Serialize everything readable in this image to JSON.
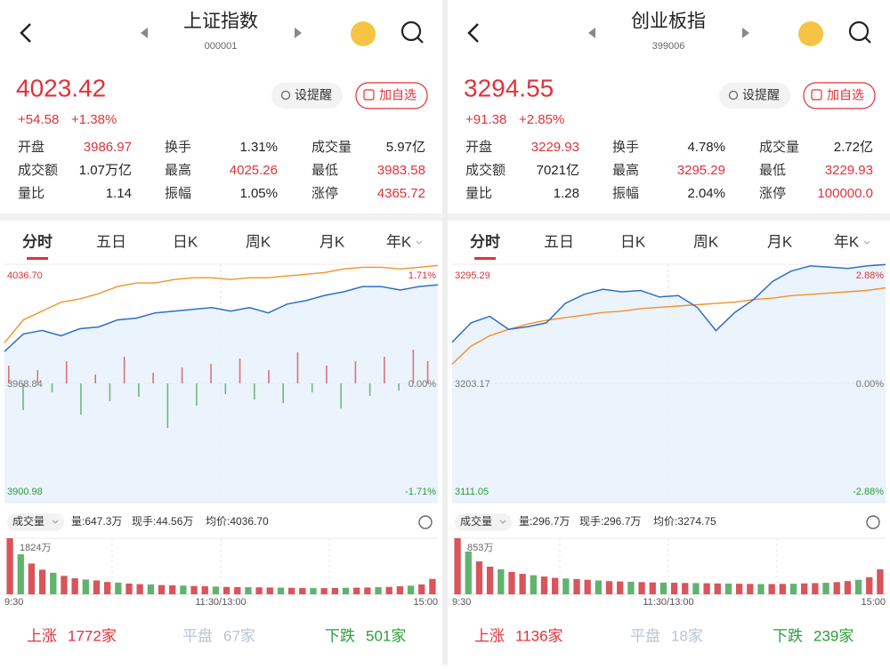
{
  "panels": [
    {
      "header": {
        "title": "上证指数",
        "code": "000001"
      },
      "quote": {
        "price": "4023.42",
        "change": "+54.58",
        "pct": "+1.38%"
      },
      "buttons": [
        "设提醒",
        "加自选"
      ],
      "stats": [
        [
          "开盘",
          "3986.97"
        ],
        [
          "换手",
          "1.31%"
        ],
        [
          "成交量",
          "5.97亿"
        ],
        [
          "成交额",
          "1.07万亿"
        ],
        [
          "最高",
          "4025.26"
        ],
        [
          "最低",
          "3983.58"
        ],
        [
          "量比",
          "1.14"
        ],
        [
          "振幅",
          "1.05%"
        ],
        [
          "涨停",
          "4365.72"
        ]
      ],
      "tabs": [
        "分时",
        "五日",
        "日K",
        "周K",
        "月K",
        "年K"
      ],
      "chart": {
        "ymax_label": "4036.70",
        "ymid_label": "3968.84",
        "ymin_label": "3900.98",
        "pct_max": "1.71%",
        "pct_mid": "0.00%",
        "pct_min": "-1.71%",
        "ylim": [
          3900.98,
          4036.7
        ],
        "price": [
          3987,
          3997,
          3999,
          3996,
          4000,
          4001,
          4005,
          4006,
          4009,
          4010,
          4011,
          4012,
          4010,
          4012,
          4009,
          4014,
          4016,
          4019,
          4021,
          4024,
          4024,
          4022,
          4024,
          4025
        ],
        "avg": [
          3992,
          4005,
          4010,
          4015,
          4017,
          4020,
          4024,
          4026,
          4026,
          4028,
          4029,
          4029,
          4028,
          4029,
          4029,
          4030,
          4031,
          4032,
          4034,
          4035,
          4035,
          4034,
          4035,
          4036
        ],
        "breadth": [
          20,
          -30,
          15,
          -10,
          25,
          -35,
          10,
          -20,
          30,
          -15,
          12,
          -50,
          18,
          -25,
          22,
          -12,
          28,
          -18,
          15,
          -22,
          35,
          -10,
          20,
          -28,
          25,
          -14,
          30,
          -8,
          38,
          25
        ]
      },
      "volume": {
        "selector": "成交量",
        "info": [
          "量:647.3万",
          "现手:44.56万",
          "均价:4036.70"
        ],
        "max_label": "1824万",
        "max": 1824,
        "values": [
          1824,
          1300,
          1000,
          800,
          700,
          600,
          520,
          480,
          450,
          400,
          380,
          350,
          330,
          320,
          300,
          290,
          280,
          270,
          260,
          250,
          240,
          235,
          230,
          225,
          220,
          215,
          210,
          205,
          200,
          200,
          205,
          210,
          215,
          220,
          230,
          240,
          260,
          280,
          320,
          500
        ]
      },
      "time_labels": [
        "9:30",
        "11:30/13:00",
        "15:00"
      ],
      "market": [
        [
          "上涨",
          "1772家"
        ],
        [
          "平盘",
          "67家"
        ],
        [
          "下跌",
          "501家"
        ]
      ]
    },
    {
      "header": {
        "title": "创业板指",
        "code": "399006"
      },
      "quote": {
        "price": "3294.55",
        "change": "+91.38",
        "pct": "+2.85%"
      },
      "buttons": [
        "设提醒",
        "加自选"
      ],
      "stats": [
        [
          "开盘",
          "3229.93"
        ],
        [
          "换手",
          "4.78%"
        ],
        [
          "成交量",
          "2.72亿"
        ],
        [
          "成交额",
          "7021亿"
        ],
        [
          "最高",
          "3295.29"
        ],
        [
          "最低",
          "3229.93"
        ],
        [
          "量比",
          "1.28"
        ],
        [
          "振幅",
          "2.04%"
        ],
        [
          "涨停",
          "100000.0"
        ]
      ],
      "tabs": [
        "分时",
        "五日",
        "日K",
        "周K",
        "月K",
        "年K"
      ],
      "chart": {
        "ymax_label": "3295.29",
        "ymid_label": "3203.17",
        "ymin_label": "3111.05",
        "pct_max": "2.88%",
        "pct_mid": "0.00%",
        "pct_min": "-2.88%",
        "ylim": [
          3111.05,
          3295.29
        ],
        "price": [
          3235,
          3250,
          3255,
          3245,
          3247,
          3250,
          3265,
          3272,
          3276,
          3274,
          3275,
          3270,
          3271,
          3262,
          3244,
          3258,
          3268,
          3282,
          3290,
          3294,
          3293,
          3292,
          3294,
          3295
        ],
        "avg": [
          3218,
          3232,
          3240,
          3245,
          3249,
          3252,
          3254,
          3256,
          3258,
          3259,
          3261,
          3262,
          3263,
          3264,
          3265,
          3266,
          3268,
          3269,
          3271,
          3272,
          3273,
          3274,
          3275,
          3277
        ]
      },
      "volume": {
        "selector": "成交量",
        "info": [
          "量:296.7万",
          "现手:296.7万",
          "均价:3274.75"
        ],
        "max_label": "853万",
        "max": 853,
        "values": [
          853,
          650,
          500,
          420,
          380,
          340,
          310,
          290,
          270,
          250,
          240,
          230,
          220,
          210,
          200,
          195,
          190,
          185,
          180,
          178,
          175,
          172,
          170,
          168,
          165,
          163,
          160,
          158,
          155,
          155,
          158,
          160,
          165,
          170,
          175,
          185,
          200,
          220,
          260,
          380
        ]
      },
      "time_labels": [
        "9:30",
        "11:30/13:00",
        "15:00"
      ],
      "market": [
        [
          "上涨",
          "1136家"
        ],
        [
          "平盘",
          "18家"
        ],
        [
          "下跌",
          "239家"
        ]
      ]
    }
  ]
}
